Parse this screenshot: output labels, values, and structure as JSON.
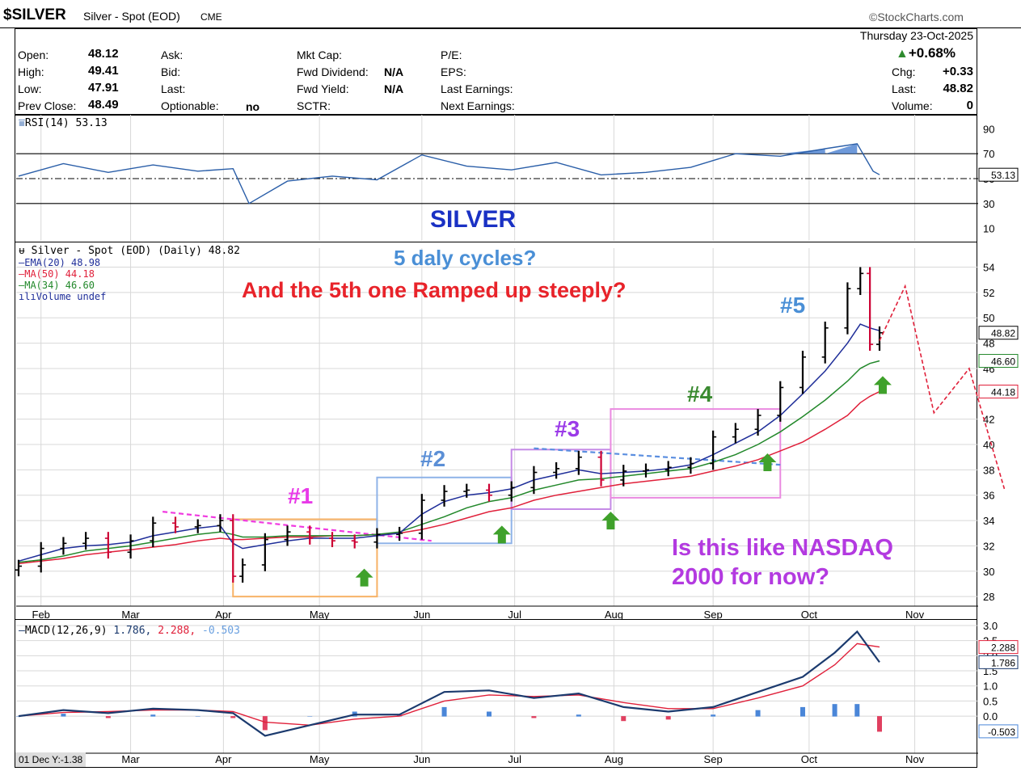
{
  "header": {
    "symbol": "$SILVER",
    "name": "Silver - Spot (EOD)",
    "exchange": "CME",
    "brand": "©StockCharts.com",
    "date_line": "Thursday  23-Oct-2025"
  },
  "quote": {
    "open_label": "Open:",
    "open": "48.12",
    "high_label": "High:",
    "high": "49.41",
    "low_label": "Low:",
    "low": "47.91",
    "prev_label": "Prev Close:",
    "prev": "48.49",
    "ask_label": "Ask:",
    "bid_label": "Bid:",
    "last_label_mid": "Last:",
    "optionable_label": "Optionable:",
    "optionable": "no",
    "mktcap_label": "Mkt Cap:",
    "fwd_div_label": "Fwd Dividend:",
    "fwd_div": "N/A",
    "fwd_yield_label": "Fwd Yield:",
    "fwd_yield": "N/A",
    "sctr_label": "SCTR:",
    "pe_label": "P/E:",
    "eps_label": "EPS:",
    "last_earn_label": "Last Earnings:",
    "next_earn_label": "Next Earnings:",
    "pct_change": "+0.68%",
    "chg_label": "Chg:",
    "chg": "+0.33",
    "last_label": "Last:",
    "last": "48.82",
    "volume_label": "Volume:",
    "volume": "0"
  },
  "colors": {
    "up_bar": "#000000",
    "down_bar": "#cc0033",
    "ema20": "#1f2e99",
    "ma50": "#e0203a",
    "ma34": "#22882a",
    "rsi": "#2a5ea8",
    "rsi_fill": "#4a7fd0",
    "macd": "#1b3a6e",
    "signal": "#e0203a",
    "hist_pos": "#4a86d8",
    "hist_neg": "#e04060",
    "box1": "#f7b266",
    "box2": "#8fb3e8",
    "box3": "#c58ae6",
    "box4": "#ea8ae0",
    "arrow": "#3fa12b",
    "forecast": "#e0203a"
  },
  "chart_data": [
    {
      "type": "line",
      "name": "RSI(14)",
      "legend": "RSI(14) 53.13",
      "last_value_tag": "53.13",
      "ylim": [
        0,
        100
      ],
      "yticks": [
        "90",
        "70",
        "50",
        "30",
        "10"
      ],
      "overbought": 70,
      "oversold": 30,
      "x": [
        "2025-01-27",
        "2025-02-10",
        "2025-02-24",
        "2025-03-10",
        "2025-03-24",
        "2025-04-04",
        "2025-04-09",
        "2025-04-21",
        "2025-05-05",
        "2025-05-19",
        "2025-06-02",
        "2025-06-16",
        "2025-06-30",
        "2025-07-14",
        "2025-07-28",
        "2025-08-11",
        "2025-08-25",
        "2025-09-08",
        "2025-09-22",
        "2025-10-06",
        "2025-10-16",
        "2025-10-21",
        "2025-10-23"
      ],
      "values": [
        52,
        62,
        55,
        61,
        56,
        58,
        30,
        48,
        52,
        49,
        69,
        60,
        57,
        63,
        53,
        55,
        59,
        70,
        68,
        74,
        78,
        56,
        53.13
      ]
    },
    {
      "type": "bar",
      "name": "Silver - Spot (EOD) (Daily)",
      "title": "SILVER",
      "legend": [
        "Silver - Spot (EOD) (Daily) 48.82",
        "EMA(20) 48.98",
        "MA(50) 44.18",
        "MA(34) 46.60",
        "Volume undef"
      ],
      "ylim": [
        27.5,
        55.5
      ],
      "yticks": [
        "54",
        "52",
        "50",
        "48",
        "46",
        "44",
        "42",
        "40",
        "38",
        "36",
        "34",
        "32",
        "30",
        "28"
      ],
      "xticks": [
        "Feb",
        "Mar",
        "Apr",
        "May",
        "Jun",
        "Jul",
        "Aug",
        "Sep",
        "Oct",
        "Nov"
      ],
      "price_tags": [
        "48.82",
        "46.60",
        "44.18"
      ],
      "x": [
        "2025-01-27",
        "2025-02-03",
        "2025-02-10",
        "2025-02-17",
        "2025-02-24",
        "2025-03-03",
        "2025-03-10",
        "2025-03-17",
        "2025-03-24",
        "2025-03-31",
        "2025-04-04",
        "2025-04-07",
        "2025-04-14",
        "2025-04-21",
        "2025-04-28",
        "2025-05-05",
        "2025-05-12",
        "2025-05-19",
        "2025-05-26",
        "2025-06-02",
        "2025-06-09",
        "2025-06-16",
        "2025-06-23",
        "2025-06-30",
        "2025-07-07",
        "2025-07-14",
        "2025-07-21",
        "2025-07-28",
        "2025-08-04",
        "2025-08-11",
        "2025-08-18",
        "2025-08-25",
        "2025-09-01",
        "2025-09-08",
        "2025-09-15",
        "2025-09-22",
        "2025-09-29",
        "2025-10-06",
        "2025-10-13",
        "2025-10-17",
        "2025-10-20",
        "2025-10-23"
      ],
      "close": [
        30.4,
        31.8,
        32.2,
        32.6,
        31.5,
        32.4,
        33.8,
        33.5,
        33.6,
        34.0,
        29.6,
        30.5,
        32.5,
        33.1,
        32.6,
        32.4,
        32.3,
        32.9,
        33.0,
        35.6,
        36.3,
        36.4,
        36.0,
        36.6,
        37.8,
        38.1,
        39.0,
        37.2,
        37.9,
        38.0,
        38.2,
        38.5,
        40.6,
        41.2,
        42.3,
        44.5,
        46.9,
        49.2,
        52.3,
        53.5,
        47.9,
        48.82
      ],
      "ema20": [
        30.8,
        31.3,
        31.8,
        32.0,
        32.1,
        32.3,
        32.8,
        33.1,
        33.4,
        33.6,
        32.2,
        31.8,
        32.1,
        32.4,
        32.6,
        32.6,
        32.6,
        32.8,
        33.0,
        34.5,
        35.5,
        36.0,
        36.2,
        36.5,
        37.2,
        37.6,
        38.0,
        37.7,
        37.8,
        37.9,
        38.1,
        38.4,
        39.2,
        40.1,
        41.0,
        42.3,
        44.0,
        45.8,
        48.0,
        49.5,
        49.2,
        48.98
      ],
      "ma50": [
        30.6,
        30.8,
        31.0,
        31.3,
        31.5,
        31.7,
        31.9,
        32.1,
        32.4,
        32.6,
        32.5,
        32.5,
        32.6,
        32.7,
        32.7,
        32.8,
        32.8,
        32.9,
        33.0,
        33.3,
        33.7,
        34.2,
        34.7,
        35.0,
        35.6,
        36.0,
        36.3,
        36.6,
        36.9,
        37.1,
        37.3,
        37.5,
        37.9,
        38.3,
        38.8,
        39.5,
        40.2,
        41.2,
        42.3,
        43.3,
        43.8,
        44.18
      ],
      "ma34": [
        30.7,
        30.9,
        31.2,
        31.6,
        31.8,
        32.0,
        32.3,
        32.6,
        32.9,
        33.1,
        32.9,
        32.7,
        32.7,
        32.8,
        32.8,
        32.8,
        32.8,
        32.9,
        33.1,
        33.7,
        34.3,
        35.0,
        35.5,
        35.8,
        36.4,
        36.8,
        37.2,
        37.3,
        37.5,
        37.7,
        37.9,
        38.1,
        38.6,
        39.2,
        40.0,
        41.0,
        42.2,
        43.5,
        45.0,
        46.0,
        46.4,
        46.6
      ]
    },
    {
      "type": "line",
      "name": "MACD(12,26,9)",
      "legend_prefix": "MACD(12,26,9)",
      "legend_macd": "1.786,",
      "legend_signal": "2.288,",
      "legend_hist": "-0.503",
      "last_value_tags": [
        "2.288",
        "1.786",
        "-0.503"
      ],
      "ylim": [
        -0.8,
        3.0
      ],
      "yticks": [
        "3.0",
        "2.5",
        "2.0",
        "1.5",
        "1.0",
        "0.5",
        "0.0"
      ],
      "footer": "01 Dec Y:-1.38",
      "xticks": [
        "Mar",
        "Apr",
        "May",
        "Jun",
        "Jul",
        "Aug",
        "Sep",
        "Oct",
        "Nov"
      ],
      "x": [
        "2025-01-27",
        "2025-02-10",
        "2025-02-24",
        "2025-03-10",
        "2025-03-24",
        "2025-04-04",
        "2025-04-14",
        "2025-04-28",
        "2025-05-12",
        "2025-05-26",
        "2025-06-09",
        "2025-06-23",
        "2025-07-07",
        "2025-07-21",
        "2025-08-04",
        "2025-08-18",
        "2025-09-01",
        "2025-09-15",
        "2025-09-29",
        "2025-10-09",
        "2025-10-16",
        "2025-10-23"
      ],
      "macd": [
        0.0,
        0.2,
        0.1,
        0.25,
        0.2,
        0.1,
        -0.65,
        -0.3,
        0.05,
        0.05,
        0.8,
        0.85,
        0.6,
        0.75,
        0.3,
        0.15,
        0.3,
        0.8,
        1.3,
        2.1,
        2.8,
        1.786
      ],
      "signal": [
        0.0,
        0.12,
        0.15,
        0.2,
        0.2,
        0.15,
        -0.2,
        -0.3,
        -0.1,
        0.0,
        0.5,
        0.7,
        0.65,
        0.7,
        0.45,
        0.25,
        0.25,
        0.6,
        1.0,
        1.7,
        2.4,
        2.288
      ],
      "hist": [
        0.0,
        0.08,
        -0.05,
        0.05,
        0.0,
        -0.05,
        -0.45,
        0.0,
        0.15,
        0.05,
        0.3,
        0.15,
        -0.05,
        0.05,
        -0.15,
        -0.1,
        0.05,
        0.2,
        0.3,
        0.4,
        0.4,
        -0.503
      ]
    }
  ],
  "annotations": {
    "title": "SILVER",
    "q1": "5 daly cycles?",
    "q2": "And the 5th one Ramped up steeply?",
    "c1": "#1",
    "c2": "#2",
    "c3": "#3",
    "c4": "#4",
    "c5": "#5",
    "nasdaq": "Is this like NASDAQ\n2000 for now?"
  }
}
